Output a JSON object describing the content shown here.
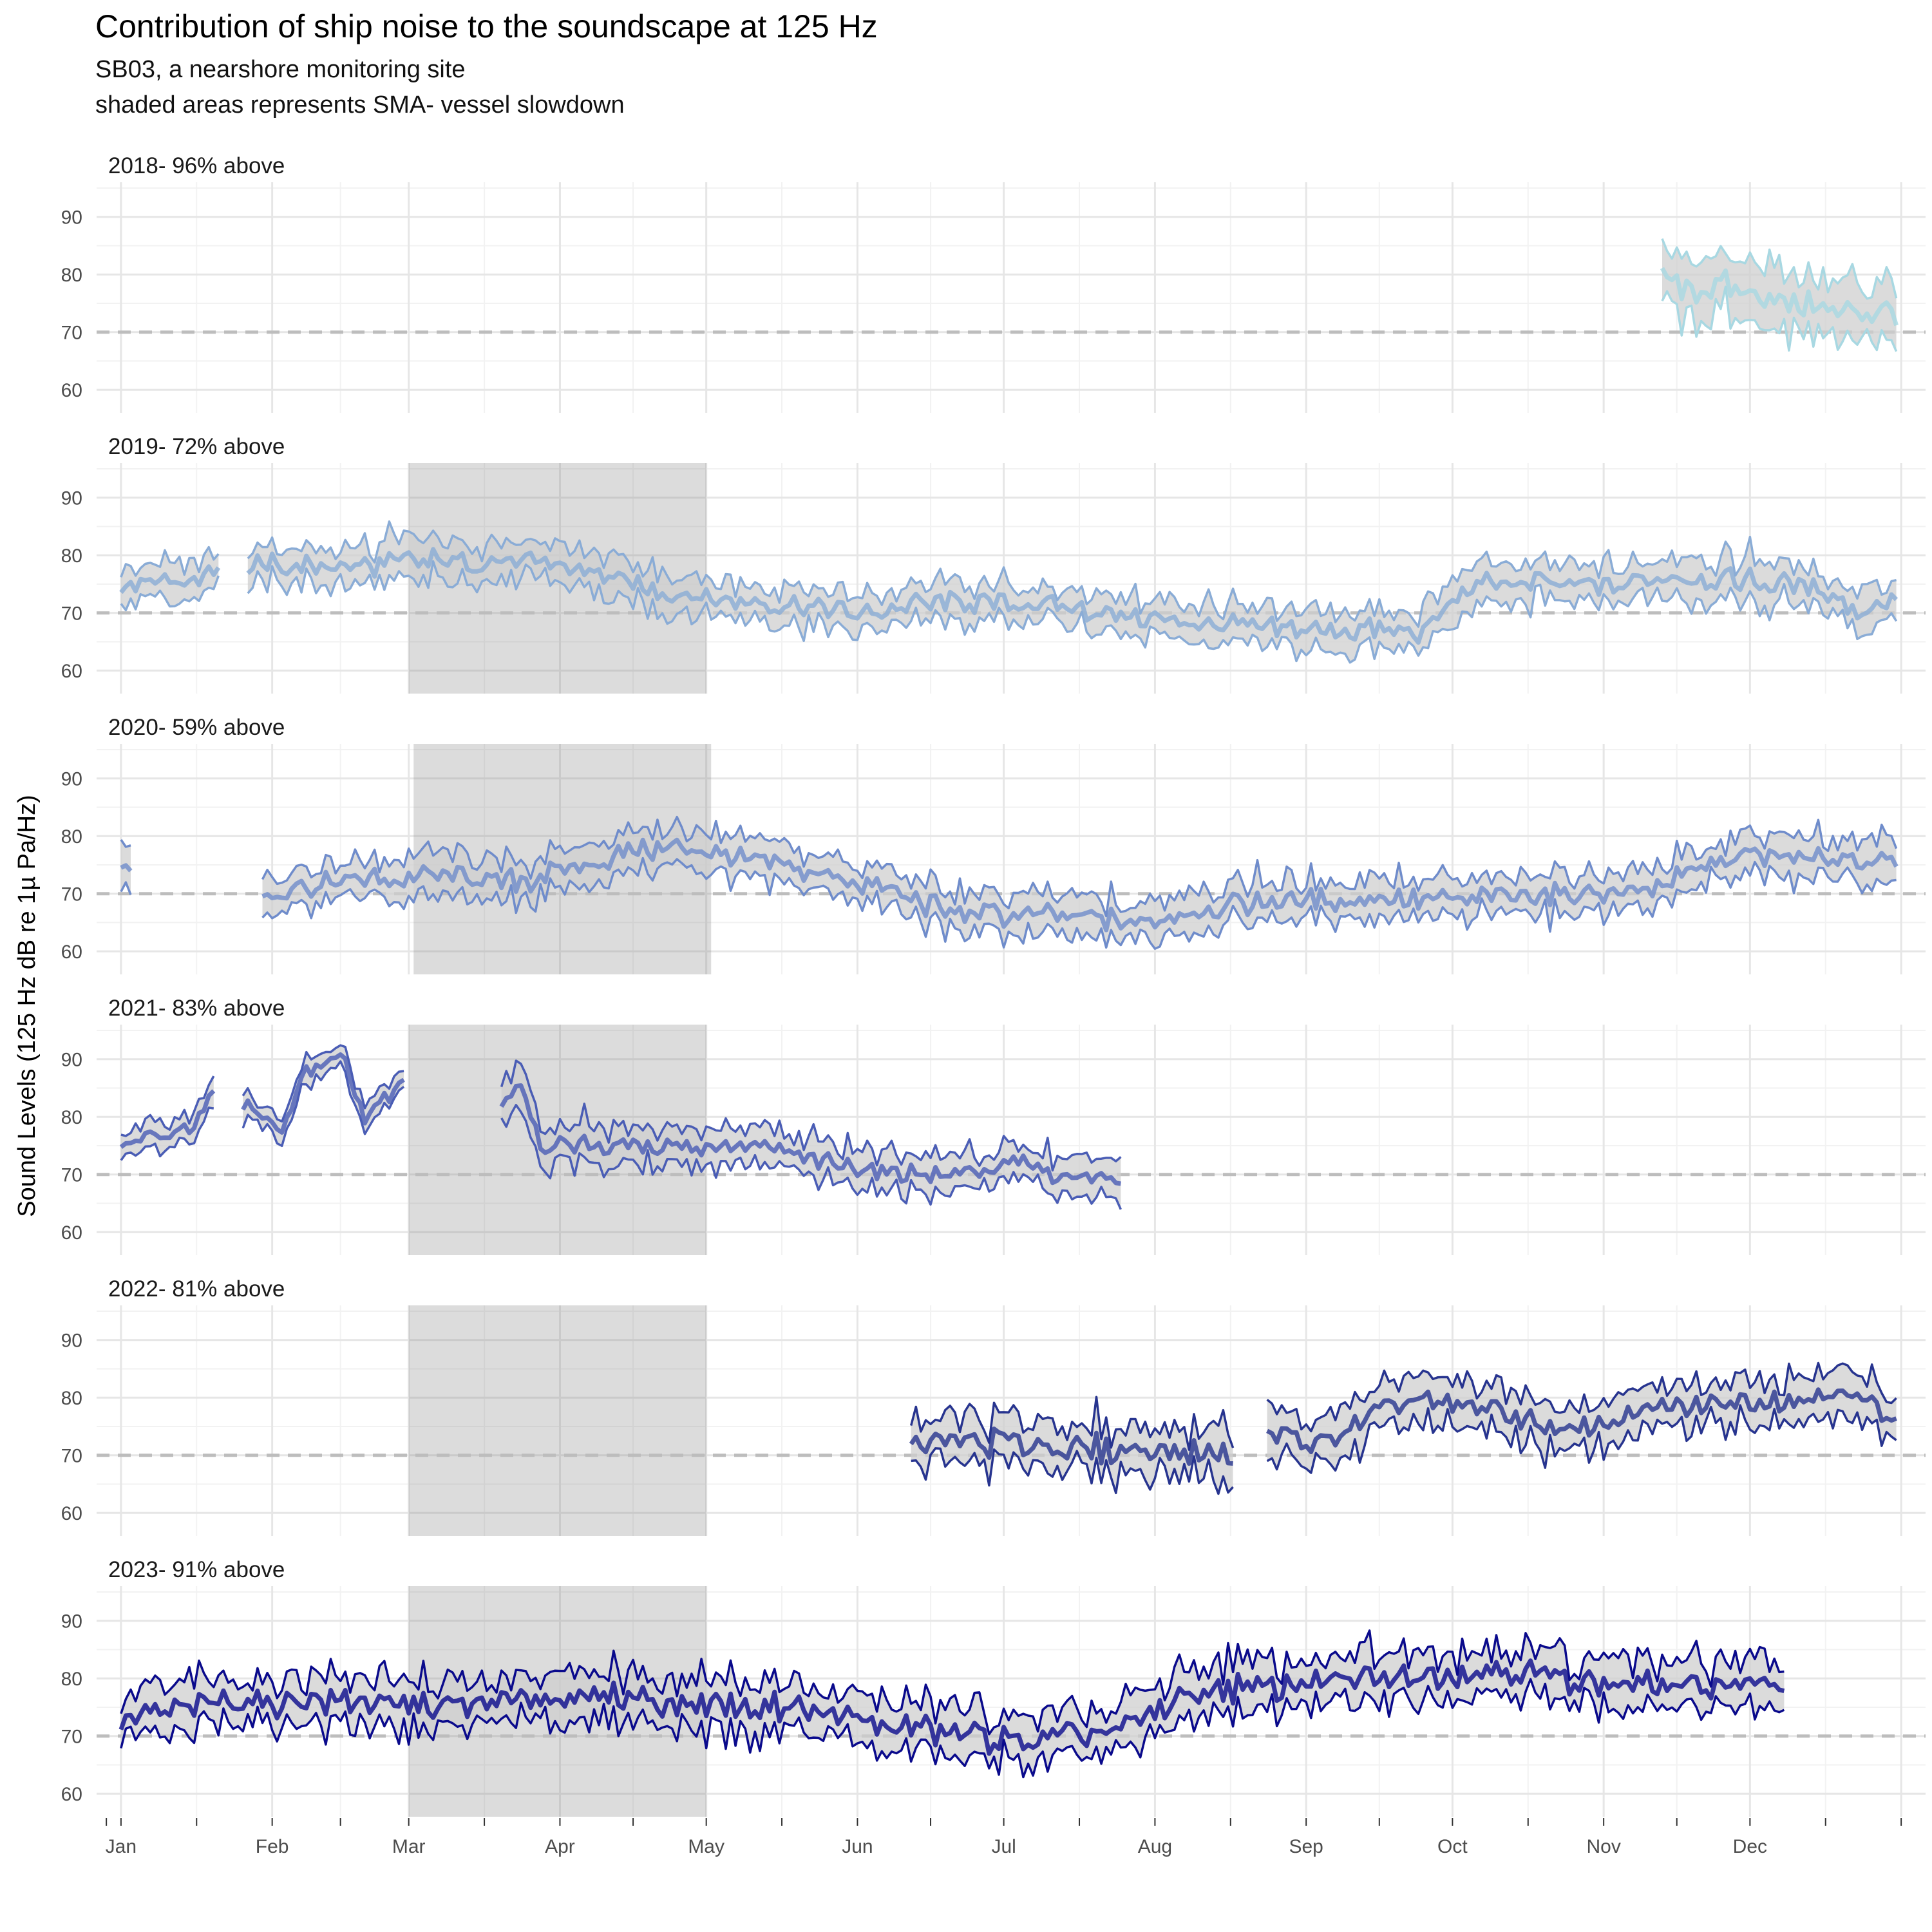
{
  "chart_data": {
    "type": "line",
    "title": "Contribution of ship noise to the soundscape at 125 Hz",
    "subtitle_lines": [
      "SB03, a nearshore monitoring site",
      "shaded areas represents SMA- vessel slowdown"
    ],
    "ylabel": "Sound Levels (125 Hz dB re 1µ Pa/Hz)",
    "xlabel": "",
    "x_ticks": [
      "Jan",
      "Feb",
      "Mar",
      "Apr",
      "May",
      "Jun",
      "Jul",
      "Aug",
      "Sep",
      "Oct",
      "Nov",
      "Dec"
    ],
    "y_ticks": [
      60,
      70,
      80,
      90
    ],
    "ylim": [
      56,
      96
    ],
    "xlim_day_of_year": [
      -5,
      370
    ],
    "threshold_db": 70,
    "grid": true,
    "legend": "none",
    "series_description": "each panel shows daily low, median and high sound level lines; ribbon between low and high",
    "panels": [
      {
        "label": "2018- 96% above",
        "color": "#A8D8E2",
        "slowdown": null,
        "segments": [
          {
            "start": "Nov 13",
            "end": "Dec 31",
            "median": [
              {
                "x": "Nov 13",
                "y": 80
              },
              {
                "x": "Nov 20",
                "y": 77
              },
              {
                "x": "Nov 27",
                "y": 78
              },
              {
                "x": "Dec 4",
                "y": 76
              },
              {
                "x": "Dec 11",
                "y": 75
              },
              {
                "x": "Dec 18",
                "y": 74
              },
              {
                "x": "Dec 25",
                "y": 73
              },
              {
                "x": "Dec 31",
                "y": 73
              }
            ],
            "spread": 4,
            "noise": 5
          }
        ]
      },
      {
        "label": "2019- 72% above",
        "color": "#8AACD6",
        "slowdown": [
          "Mar 1",
          "Apr 30"
        ],
        "segments": [
          {
            "start": "Jan 1",
            "end": "Jan 21",
            "median": [
              {
                "x": "Jan 1",
                "y": 74
              },
              {
                "x": "Jan 8",
                "y": 76
              },
              {
                "x": "Jan 15",
                "y": 75
              },
              {
                "x": "Jan 21",
                "y": 78
              }
            ],
            "spread": 2.5,
            "noise": 2.5
          },
          {
            "start": "Jan 27",
            "end": "Dec 31",
            "median": [
              {
                "x": "Jan 27",
                "y": 78
              },
              {
                "x": "Feb 15",
                "y": 78
              },
              {
                "x": "Mar 1",
                "y": 79
              },
              {
                "x": "Mar 20",
                "y": 79
              },
              {
                "x": "Apr 5",
                "y": 78
              },
              {
                "x": "Apr 20",
                "y": 74
              },
              {
                "x": "May 10",
                "y": 72
              },
              {
                "x": "Jun 1",
                "y": 70
              },
              {
                "x": "Jun 20",
                "y": 72
              },
              {
                "x": "Jul 15",
                "y": 71
              },
              {
                "x": "Aug 10",
                "y": 68
              },
              {
                "x": "Sep 1",
                "y": 67
              },
              {
                "x": "Sep 25",
                "y": 67
              },
              {
                "x": "Oct 5",
                "y": 75
              },
              {
                "x": "Oct 25",
                "y": 75
              },
              {
                "x": "Nov 15",
                "y": 76
              },
              {
                "x": "Dec 1",
                "y": 76
              },
              {
                "x": "Dec 15",
                "y": 74
              },
              {
                "x": "Dec 24",
                "y": 70
              },
              {
                "x": "Dec 31",
                "y": 73
              }
            ],
            "spread": 2.5,
            "noise": 4
          }
        ]
      },
      {
        "label": "2020- 59% above",
        "color": "#6F8CCB",
        "slowdown": [
          "Mar 2",
          "May 1"
        ],
        "segments": [
          {
            "start": "Jan 1",
            "end": "Jan 3",
            "median": [
              {
                "x": "Jan 1",
                "y": 74
              },
              {
                "x": "Jan 3",
                "y": 75
              }
            ],
            "spread": 3,
            "noise": 2
          },
          {
            "start": "Jan 30",
            "end": "Dec 31",
            "median": [
              {
                "x": "Jan 30",
                "y": 70
              },
              {
                "x": "Feb 15",
                "y": 72
              },
              {
                "x": "Mar 5",
                "y": 73
              },
              {
                "x": "Mar 25",
                "y": 72
              },
              {
                "x": "Apr 10",
                "y": 76
              },
              {
                "x": "Apr 25",
                "y": 78
              },
              {
                "x": "May 10",
                "y": 76
              },
              {
                "x": "Jun 1",
                "y": 72
              },
              {
                "x": "Jun 20",
                "y": 67
              },
              {
                "x": "Jul 10",
                "y": 66
              },
              {
                "x": "Aug 1",
                "y": 65
              },
              {
                "x": "Aug 15",
                "y": 68
              },
              {
                "x": "Sep 5",
                "y": 69
              },
              {
                "x": "Oct 1",
                "y": 69
              },
              {
                "x": "Oct 20",
                "y": 70
              },
              {
                "x": "Nov 10",
                "y": 71
              },
              {
                "x": "Dec 1",
                "y": 77
              },
              {
                "x": "Dec 20",
                "y": 76
              },
              {
                "x": "Dec 31",
                "y": 75
              }
            ],
            "spread": 2.5,
            "noise": 4
          }
        ]
      },
      {
        "label": "2021- 83% above",
        "color": "#4A5DB5",
        "slowdown": [
          "Mar 1",
          "Apr 30"
        ],
        "segments": [
          {
            "start": "Jan 1",
            "end": "Jan 20",
            "median": [
              {
                "x": "Jan 1",
                "y": 75
              },
              {
                "x": "Jan 10",
                "y": 77
              },
              {
                "x": "Jan 16",
                "y": 78
              },
              {
                "x": "Jan 20",
                "y": 85
              }
            ],
            "spread": 1.8,
            "noise": 2
          },
          {
            "start": "Jan 26",
            "end": "Feb 28",
            "median": [
              {
                "x": "Jan 26",
                "y": 82
              },
              {
                "x": "Feb 3",
                "y": 77
              },
              {
                "x": "Feb 8",
                "y": 88
              },
              {
                "x": "Feb 15",
                "y": 91
              },
              {
                "x": "Feb 20",
                "y": 80
              },
              {
                "x": "Feb 28",
                "y": 86
              }
            ],
            "spread": 1.5,
            "noise": 3
          },
          {
            "start": "Mar 20",
            "end": "Jul 25",
            "median": [
              {
                "x": "Mar 20",
                "y": 83
              },
              {
                "x": "Mar 24",
                "y": 86
              },
              {
                "x": "Mar 28",
                "y": 75
              },
              {
                "x": "Apr 15",
                "y": 75
              },
              {
                "x": "May 10",
                "y": 75
              },
              {
                "x": "Jun 1",
                "y": 71
              },
              {
                "x": "Jun 20",
                "y": 70
              },
              {
                "x": "Jul 5",
                "y": 72
              },
              {
                "x": "Jul 15",
                "y": 69
              },
              {
                "x": "Jul 25",
                "y": 69
              }
            ],
            "spread": 2.5,
            "noise": 3.5
          }
        ]
      },
      {
        "label": "2022- 81% above",
        "color": "#27348F",
        "slowdown": [
          "Mar 1",
          "Apr 30"
        ],
        "segments": [
          {
            "start": "Jun 12",
            "end": "Aug 17",
            "median": [
              {
                "x": "Jun 12",
                "y": 72
              },
              {
                "x": "Jul 1",
                "y": 72
              },
              {
                "x": "Jul 20",
                "y": 71
              },
              {
                "x": "Aug 17",
                "y": 70
              }
            ],
            "spread": 3,
            "noise": 5
          },
          {
            "start": "Aug 24",
            "end": "Dec 31",
            "median": [
              {
                "x": "Aug 24",
                "y": 74
              },
              {
                "x": "Sep 5",
                "y": 72
              },
              {
                "x": "Sep 20",
                "y": 79
              },
              {
                "x": "Oct 5",
                "y": 79
              },
              {
                "x": "Oct 25",
                "y": 74
              },
              {
                "x": "Nov 10",
                "y": 78
              },
              {
                "x": "Dec 1",
                "y": 79
              },
              {
                "x": "Dec 20",
                "y": 81
              },
              {
                "x": "Dec 31",
                "y": 77
              }
            ],
            "spread": 3,
            "noise": 4
          }
        ]
      },
      {
        "label": "2023- 91% above",
        "color": "#0A0A8C",
        "slowdown": [
          "Mar 1",
          "Apr 30"
        ],
        "segments": [
          {
            "start": "Jan 1",
            "end": "Dec 8",
            "median": [
              {
                "x": "Jan 1",
                "y": 72
              },
              {
                "x": "Jan 20",
                "y": 76
              },
              {
                "x": "Feb 15",
                "y": 76
              },
              {
                "x": "Mar 10",
                "y": 75
              },
              {
                "x": "Apr 1",
                "y": 77
              },
              {
                "x": "Apr 25",
                "y": 76
              },
              {
                "x": "May 20",
                "y": 75
              },
              {
                "x": "Jun 15",
                "y": 71
              },
              {
                "x": "Jul 5",
                "y": 69
              },
              {
                "x": "Jul 25",
                "y": 71
              },
              {
                "x": "Aug 10",
                "y": 78
              },
              {
                "x": "Sep 1",
                "y": 79
              },
              {
                "x": "Sep 20",
                "y": 80
              },
              {
                "x": "Oct 10",
                "y": 82
              },
              {
                "x": "Nov 1",
                "y": 79
              },
              {
                "x": "Nov 20",
                "y": 79
              },
              {
                "x": "Dec 8",
                "y": 79
              }
            ],
            "spread": 3,
            "noise": 5
          }
        ]
      }
    ]
  }
}
